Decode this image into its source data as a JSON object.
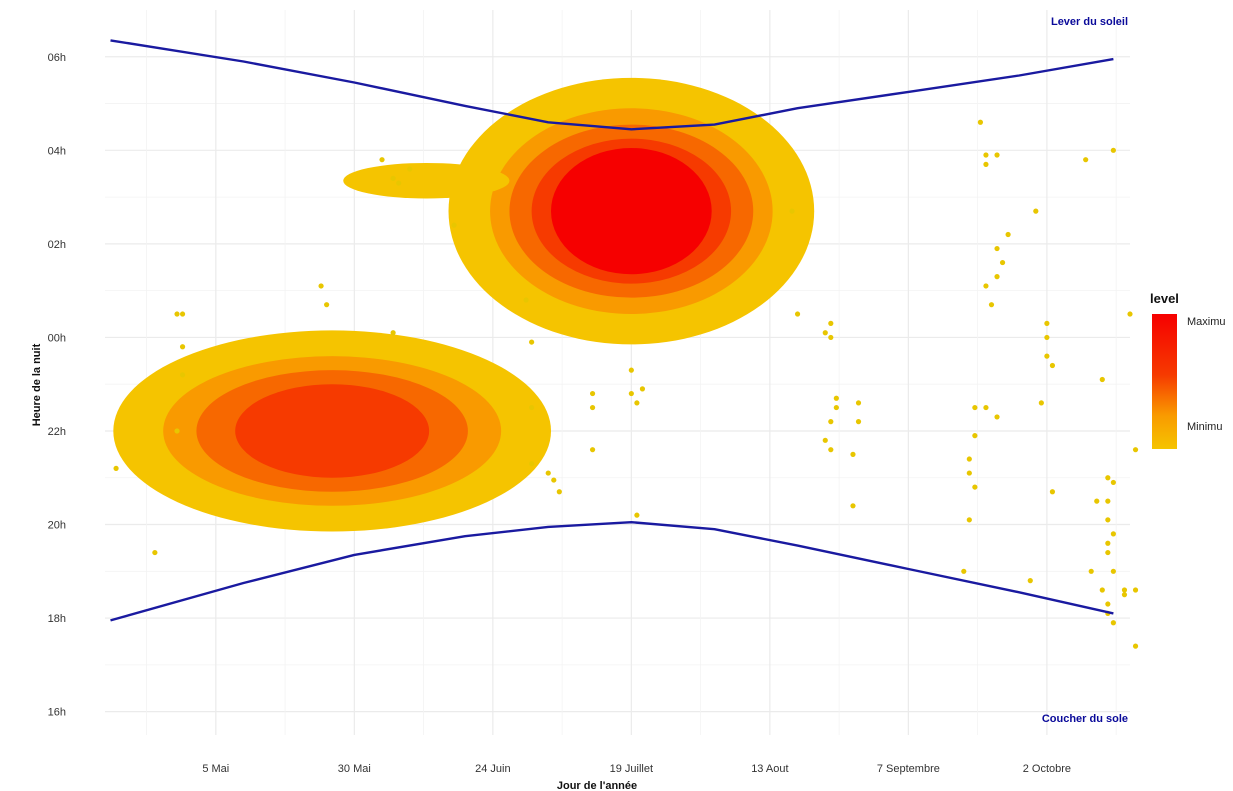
{
  "chart_data": {
    "type": "scatter",
    "title": "",
    "xlabel": "Jour de l'année",
    "ylabel": "Heure de la nuit",
    "grid": true,
    "legend_position": "right",
    "x_unit": "day of year",
    "y_unit": "hours after noon",
    "xlim": [
      105,
      290
    ],
    "ylim": [
      3.5,
      19.0
    ],
    "x_ticks": [
      {
        "label": "5 Mai",
        "value": 125
      },
      {
        "label": "30 Mai",
        "value": 150
      },
      {
        "label": "24 Juin",
        "value": 175
      },
      {
        "label": "19 Juillet",
        "value": 200
      },
      {
        "label": "13 Aout",
        "value": 225
      },
      {
        "label": "7 Septembre",
        "value": 250
      },
      {
        "label": "2 Octobre",
        "value": 275
      }
    ],
    "y_ticks": [
      {
        "label": "16h",
        "value": 4
      },
      {
        "label": "18h",
        "value": 6
      },
      {
        "label": "20h",
        "value": 8
      },
      {
        "label": "22h",
        "value": 10
      },
      {
        "label": "00h",
        "value": 12
      },
      {
        "label": "02h",
        "value": 14
      },
      {
        "label": "04h",
        "value": 16
      },
      {
        "label": "06h",
        "value": 18
      }
    ],
    "sunrise": {
      "label": "Lever du soleil",
      "color": "#1a1aa0",
      "x": [
        106,
        130,
        150,
        170,
        185,
        200,
        215,
        230,
        250,
        270,
        287
      ],
      "y": [
        18.35,
        17.9,
        17.45,
        16.95,
        16.6,
        16.45,
        16.55,
        16.9,
        17.25,
        17.6,
        17.95
      ]
    },
    "sunset": {
      "label": "Coucher du sole",
      "color": "#1a1aa0",
      "x": [
        106,
        130,
        150,
        170,
        185,
        200,
        215,
        230,
        250,
        270,
        287
      ],
      "y": [
        5.95,
        6.75,
        7.35,
        7.75,
        7.95,
        8.05,
        7.9,
        7.55,
        7.05,
        6.55,
        6.1
      ]
    },
    "density": {
      "legend_title": "level",
      "max_label": "Maximu",
      "min_label": "Minimu",
      "colors": [
        "#f5c400",
        "#f99a00",
        "#f76800",
        "#f63a00",
        "#f60000"
      ],
      "clusters": [
        {
          "cx": 146,
          "cy": 10.0,
          "levels": [
            [
              39.5,
              2.15
            ],
            [
              30.5,
              1.6
            ],
            [
              24.5,
              1.3
            ],
            [
              17.5,
              1.0
            ]
          ]
        },
        {
          "cx": 200,
          "cy": 14.7,
          "levels": [
            [
              33,
              2.85
            ],
            [
              25.5,
              2.2
            ],
            [
              22,
              1.85
            ],
            [
              18,
              1.55
            ],
            [
              14.5,
              1.35
            ]
          ]
        },
        {
          "cx": 163,
          "cy": 15.35,
          "levels": [
            [
              15,
              0.38
            ]
          ]
        }
      ]
    },
    "points": [
      {
        "x": 107,
        "y": 9.2
      },
      {
        "x": 114,
        "y": 7.4
      },
      {
        "x": 118,
        "y": 12.5
      },
      {
        "x": 119,
        "y": 12.5
      },
      {
        "x": 119,
        "y": 11.8
      },
      {
        "x": 119,
        "y": 11.2
      },
      {
        "x": 118,
        "y": 10.0
      },
      {
        "x": 144,
        "y": 13.1
      },
      {
        "x": 145,
        "y": 12.7
      },
      {
        "x": 157,
        "y": 12.1
      },
      {
        "x": 155,
        "y": 15.8
      },
      {
        "x": 157,
        "y": 15.4
      },
      {
        "x": 158,
        "y": 15.3
      },
      {
        "x": 160,
        "y": 15.6
      },
      {
        "x": 168,
        "y": 14.4
      },
      {
        "x": 181,
        "y": 12.8
      },
      {
        "x": 182,
        "y": 11.9
      },
      {
        "x": 182,
        "y": 10.5
      },
      {
        "x": 182,
        "y": 9.3
      },
      {
        "x": 185,
        "y": 9.1
      },
      {
        "x": 186,
        "y": 8.95
      },
      {
        "x": 187,
        "y": 8.7
      },
      {
        "x": 193,
        "y": 10.8
      },
      {
        "x": 193,
        "y": 10.5
      },
      {
        "x": 193,
        "y": 9.6
      },
      {
        "x": 200,
        "y": 11.3
      },
      {
        "x": 200,
        "y": 10.8
      },
      {
        "x": 201,
        "y": 10.6
      },
      {
        "x": 202,
        "y": 10.9
      },
      {
        "x": 201,
        "y": 8.2
      },
      {
        "x": 229,
        "y": 14.7
      },
      {
        "x": 230,
        "y": 12.5
      },
      {
        "x": 235,
        "y": 12.1
      },
      {
        "x": 236,
        "y": 12.3
      },
      {
        "x": 236,
        "y": 12.0
      },
      {
        "x": 237,
        "y": 10.7
      },
      {
        "x": 237,
        "y": 10.5
      },
      {
        "x": 236,
        "y": 10.2
      },
      {
        "x": 235,
        "y": 9.8
      },
      {
        "x": 236,
        "y": 9.6
      },
      {
        "x": 241,
        "y": 10.6
      },
      {
        "x": 241,
        "y": 10.2
      },
      {
        "x": 240,
        "y": 9.5
      },
      {
        "x": 240,
        "y": 8.4
      },
      {
        "x": 263,
        "y": 16.6
      },
      {
        "x": 264,
        "y": 15.9
      },
      {
        "x": 264,
        "y": 15.7
      },
      {
        "x": 266,
        "y": 15.9
      },
      {
        "x": 268,
        "y": 14.2
      },
      {
        "x": 266,
        "y": 13.9
      },
      {
        "x": 267,
        "y": 13.6
      },
      {
        "x": 266,
        "y": 13.3
      },
      {
        "x": 264,
        "y": 13.1
      },
      {
        "x": 265,
        "y": 12.7
      },
      {
        "x": 264,
        "y": 10.5
      },
      {
        "x": 266,
        "y": 10.3
      },
      {
        "x": 262,
        "y": 10.5
      },
      {
        "x": 262,
        "y": 9.9
      },
      {
        "x": 261,
        "y": 9.4
      },
      {
        "x": 261,
        "y": 9.1
      },
      {
        "x": 262,
        "y": 8.8
      },
      {
        "x": 261,
        "y": 8.1
      },
      {
        "x": 260,
        "y": 7.0
      },
      {
        "x": 273,
        "y": 14.7
      },
      {
        "x": 275,
        "y": 12.3
      },
      {
        "x": 275,
        "y": 12.0
      },
      {
        "x": 275,
        "y": 11.6
      },
      {
        "x": 276,
        "y": 11.4
      },
      {
        "x": 274,
        "y": 10.6
      },
      {
        "x": 276,
        "y": 8.7
      },
      {
        "x": 282,
        "y": 15.8
      },
      {
        "x": 287,
        "y": 16.0
      },
      {
        "x": 285,
        "y": 11.1
      },
      {
        "x": 286,
        "y": 9.0
      },
      {
        "x": 287,
        "y": 8.9
      },
      {
        "x": 286,
        "y": 8.5
      },
      {
        "x": 286,
        "y": 8.1
      },
      {
        "x": 287,
        "y": 7.8
      },
      {
        "x": 286,
        "y": 7.6
      },
      {
        "x": 286,
        "y": 7.4
      },
      {
        "x": 287,
        "y": 7.0
      },
      {
        "x": 285,
        "y": 6.6
      },
      {
        "x": 286,
        "y": 6.3
      },
      {
        "x": 286,
        "y": 6.1
      },
      {
        "x": 287,
        "y": 5.9
      },
      {
        "x": 289,
        "y": 6.6
      },
      {
        "x": 289,
        "y": 6.5
      },
      {
        "x": 290,
        "y": 12.5
      },
      {
        "x": 291,
        "y": 9.6
      },
      {
        "x": 291,
        "y": 6.6
      },
      {
        "x": 291,
        "y": 5.4
      },
      {
        "x": 272,
        "y": 6.8
      },
      {
        "x": 283,
        "y": 7.0
      },
      {
        "x": 284,
        "y": 8.5
      }
    ]
  }
}
